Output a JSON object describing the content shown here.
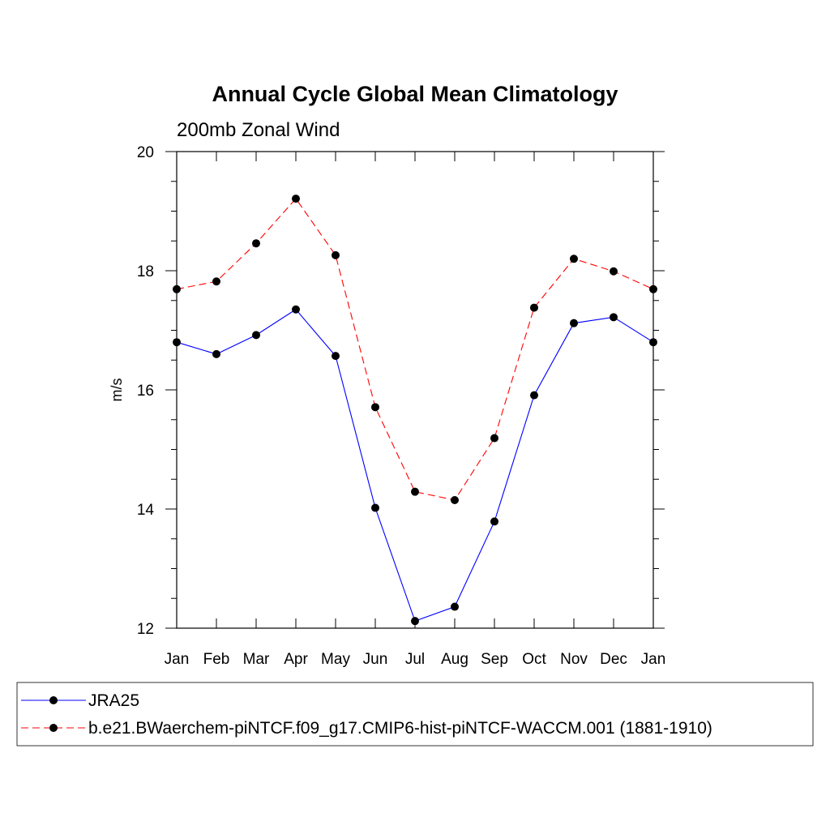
{
  "chart_data": {
    "type": "line",
    "title": "Annual Cycle Global Mean Climatology",
    "subtitle": "200mb Zonal Wind",
    "xlabel": "",
    "ylabel": "m/s",
    "categories": [
      "Jan",
      "Feb",
      "Mar",
      "Apr",
      "May",
      "Jun",
      "Jul",
      "Aug",
      "Sep",
      "Oct",
      "Nov",
      "Dec",
      "Jan"
    ],
    "ylim": [
      12,
      20
    ],
    "yticks": [
      12,
      14,
      16,
      18,
      20
    ],
    "y_minor_step": 0.5,
    "grid": false,
    "legend_placement": "bottom",
    "series": [
      {
        "name": "JRA25",
        "color": "#0000ff",
        "line_style": "solid",
        "marker": "filled-circle",
        "values": [
          16.8,
          16.6,
          16.92,
          17.35,
          16.57,
          14.02,
          12.12,
          12.36,
          13.79,
          15.91,
          17.12,
          17.22,
          16.8
        ]
      },
      {
        "name": "b.e21.BWaerchem-piNTCF.f09_g17.CMIP6-hist-piNTCF-WACCM.001 (1881-1910)",
        "color": "#ff0000",
        "line_style": "dashed",
        "marker": "filled-circle",
        "values": [
          17.69,
          17.82,
          18.46,
          19.21,
          18.26,
          15.71,
          14.29,
          14.15,
          15.19,
          17.38,
          18.2,
          17.99,
          17.69
        ]
      }
    ]
  }
}
